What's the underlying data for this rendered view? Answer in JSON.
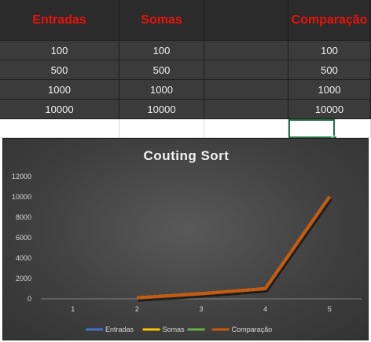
{
  "table": {
    "headers": [
      "Entradas",
      "Somas",
      "",
      "Comparação"
    ],
    "rows": [
      [
        "100",
        "100",
        "",
        "100"
      ],
      [
        "500",
        "500",
        "",
        "500"
      ],
      [
        "1000",
        "1000",
        "",
        "1000"
      ],
      [
        "10000",
        "10000",
        "",
        "10000"
      ]
    ]
  },
  "colors": {
    "header_text": "#e8140c",
    "selection": "#217346"
  },
  "chart_data": {
    "type": "line",
    "title": "Couting Sort",
    "categories": [
      "1",
      "2",
      "3",
      "4",
      "5"
    ],
    "ylim": [
      0,
      12000
    ],
    "yticks": [
      "0",
      "2000",
      "4000",
      "6000",
      "8000",
      "10000",
      "12000"
    ],
    "grid": false,
    "legend_position": "bottom",
    "series": [
      {
        "name": "Entradas",
        "color": "#4472c4",
        "values": [
          null,
          100,
          500,
          1000,
          10000
        ]
      },
      {
        "name": "Somas",
        "color": "#ffc000",
        "values": [
          null,
          100,
          500,
          1000,
          10000
        ]
      },
      {
        "name": "",
        "color": "#70ad47",
        "values": [
          null,
          null,
          null,
          null,
          null
        ]
      },
      {
        "name": "Comparação",
        "color": "#c55a11",
        "values": [
          null,
          100,
          500,
          1000,
          10000
        ]
      }
    ]
  }
}
